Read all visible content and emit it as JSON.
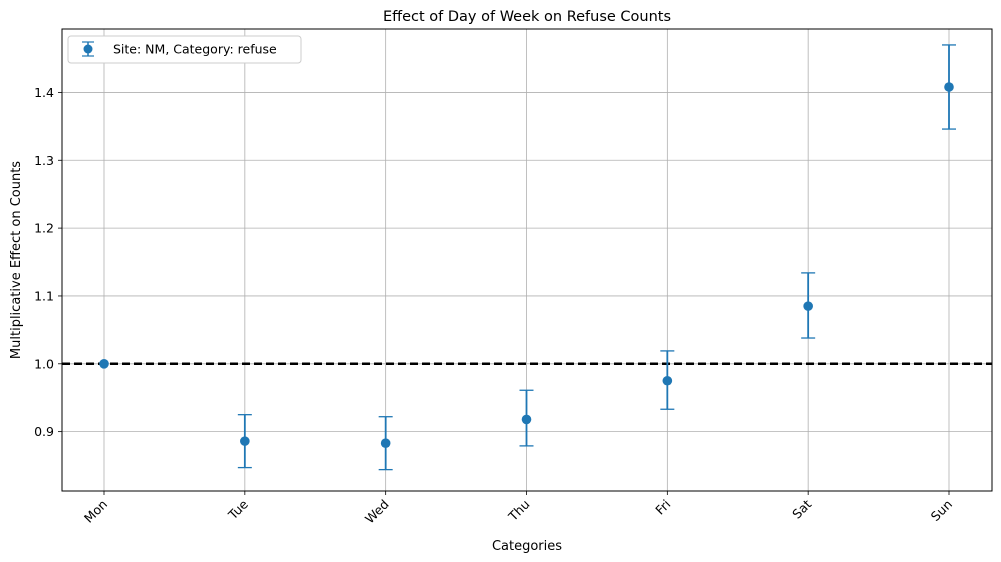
{
  "chart_data": {
    "type": "scatter",
    "title": "Effect of Day of Week on Refuse Counts",
    "xlabel": "Categories",
    "ylabel": "Multiplicative Effect on Counts",
    "categories": [
      "Mon",
      "Tue",
      "Wed",
      "Thu",
      "Fri",
      "Sat",
      "Sun"
    ],
    "series": [
      {
        "name": "Site: NM, Category: refuse",
        "values": [
          1.0,
          0.886,
          0.883,
          0.918,
          0.975,
          1.085,
          1.408
        ],
        "lower": [
          1.0,
          0.847,
          0.844,
          0.879,
          0.933,
          1.038,
          1.346
        ],
        "upper": [
          1.0,
          0.925,
          0.922,
          0.961,
          1.019,
          1.134,
          1.47
        ]
      }
    ],
    "yticks": [
      0.9,
      1.0,
      1.1,
      1.2,
      1.3,
      1.4
    ],
    "ylim": [
      0.8125,
      1.4935
    ],
    "reference_line": {
      "y": 1.0,
      "style": "dashed",
      "color": "#000000"
    },
    "grid": true,
    "legend_position": "top-left",
    "color": "#1f77b4",
    "xtick_rotation": 45
  }
}
